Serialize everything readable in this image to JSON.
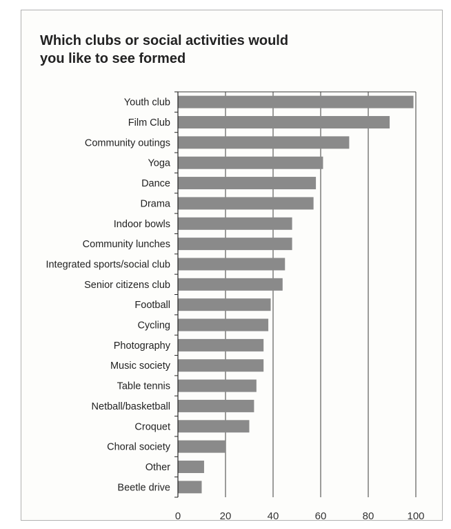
{
  "chart_data": {
    "type": "bar",
    "orientation": "horizontal",
    "title": "Which clubs or social activities would you like to see formed",
    "title_lines": [
      "Which clubs or social activities would",
      "you like to see formed"
    ],
    "categories": [
      "Youth club",
      "Film Club",
      "Community outings",
      "Yoga",
      "Dance",
      "Drama",
      "Indoor bowls",
      "Community lunches",
      "Integrated sports/social club",
      "Senior citizens club",
      "Football",
      "Cycling",
      "Photography",
      "Music society",
      "Table tennis",
      "Netball/basketball",
      "Croquet",
      "Choral society",
      "Other",
      "Beetle drive"
    ],
    "values": [
      99,
      89,
      72,
      61,
      58,
      57,
      48,
      48,
      45,
      44,
      39,
      38,
      36,
      36,
      33,
      32,
      30,
      20,
      11,
      10
    ],
    "xlim": [
      0,
      100
    ],
    "xticks": [
      0,
      20,
      40,
      60,
      80,
      100
    ],
    "grid": "vertical",
    "bar_color": "#8a8a8a",
    "grid_color": "#3a3a3a"
  }
}
